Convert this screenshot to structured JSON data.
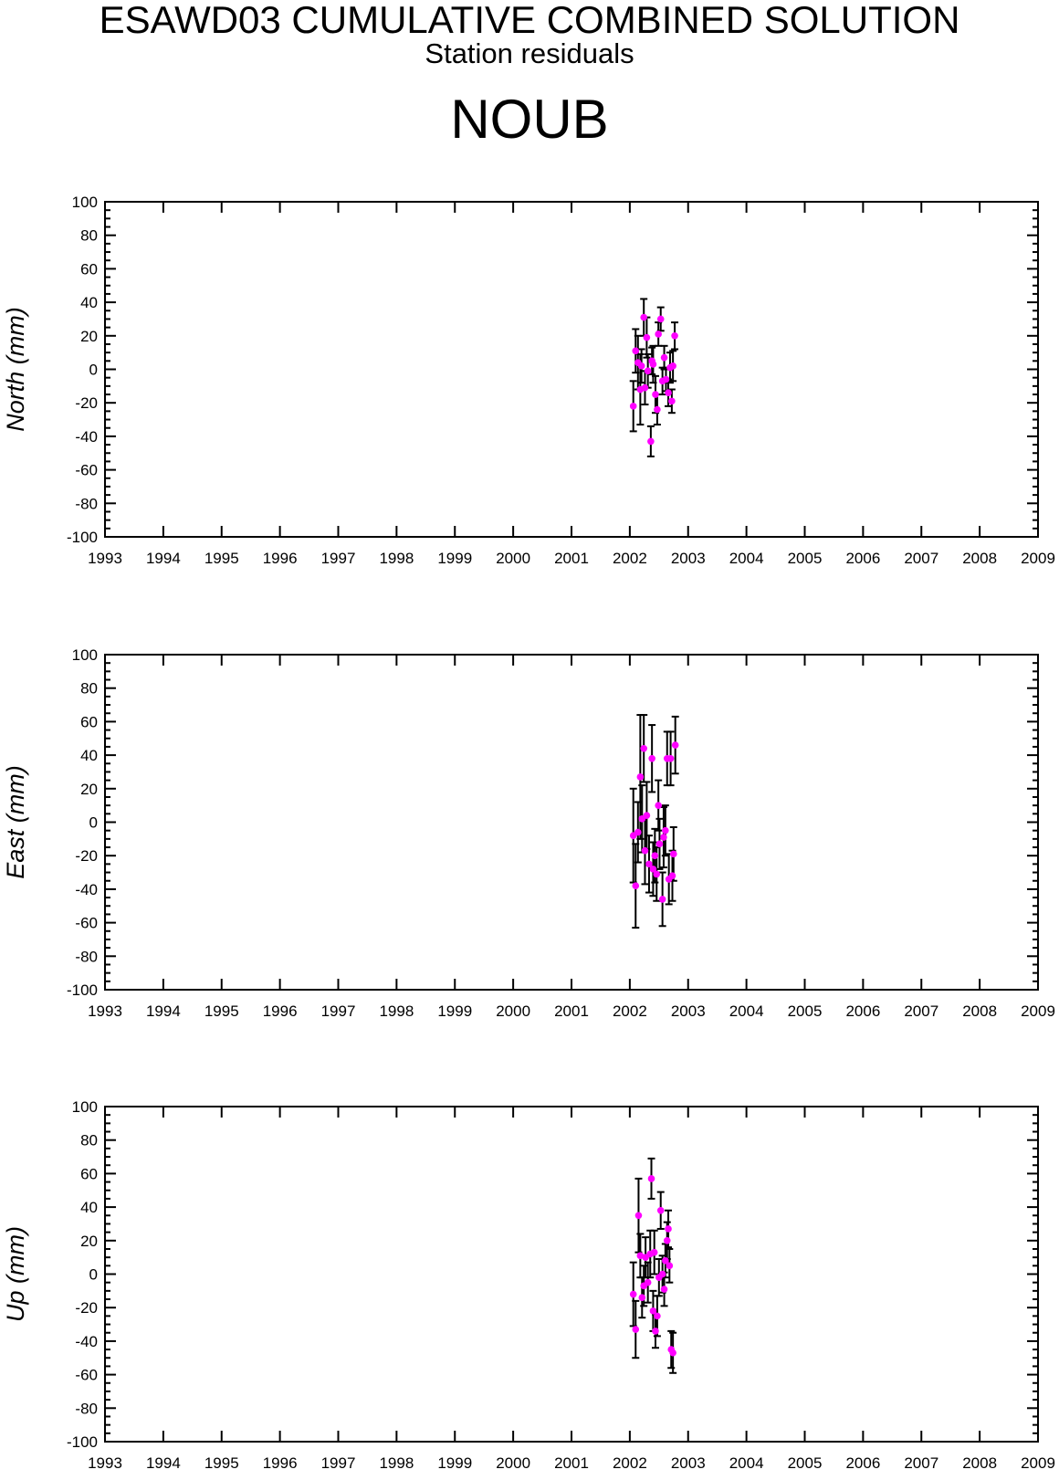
{
  "header": {
    "title": "ESAWD03 CUMULATIVE COMBINED SOLUTION",
    "subtitle": "Station residuals",
    "station": "NOUB"
  },
  "colors": {
    "marker": "#ff00ff",
    "errorbar": "#000000",
    "axis": "#000000"
  },
  "chart_data": [
    {
      "type": "scatter",
      "ylabel": "North (mm)",
      "xlim": [
        1993,
        2009
      ],
      "ylim": [
        -100,
        100
      ],
      "x_ticks": [
        "1993",
        "1994",
        "1995",
        "1996",
        "1997",
        "1998",
        "1999",
        "2000",
        "2001",
        "2002",
        "2003",
        "2004",
        "2005",
        "2006",
        "2007",
        "2008",
        "2009"
      ],
      "y_ticks": [
        "-100",
        "-80",
        "-60",
        "-40",
        "-20",
        "0",
        "20",
        "40",
        "60",
        "80",
        "100"
      ],
      "grid": false,
      "points": [
        {
          "x": 2002.06,
          "y": -22,
          "err": 15
        },
        {
          "x": 2002.1,
          "y": 11,
          "err": 13
        },
        {
          "x": 2002.14,
          "y": 4,
          "err": 16
        },
        {
          "x": 2002.18,
          "y": -12,
          "err": 21
        },
        {
          "x": 2002.2,
          "y": 2,
          "err": 10
        },
        {
          "x": 2002.24,
          "y": 31,
          "err": 11
        },
        {
          "x": 2002.26,
          "y": -11,
          "err": 10
        },
        {
          "x": 2002.29,
          "y": 19,
          "err": 12
        },
        {
          "x": 2002.31,
          "y": -1,
          "err": 10
        },
        {
          "x": 2002.36,
          "y": -43,
          "err": 9
        },
        {
          "x": 2002.38,
          "y": 5,
          "err": 8
        },
        {
          "x": 2002.4,
          "y": 3,
          "err": 11
        },
        {
          "x": 2002.44,
          "y": -15,
          "err": 11
        },
        {
          "x": 2002.47,
          "y": -24,
          "err": 9
        },
        {
          "x": 2002.49,
          "y": 21,
          "err": 7
        },
        {
          "x": 2002.53,
          "y": 30,
          "err": 7
        },
        {
          "x": 2002.56,
          "y": -7,
          "err": 8
        },
        {
          "x": 2002.59,
          "y": 7,
          "err": 7
        },
        {
          "x": 2002.62,
          "y": -6,
          "err": 7
        },
        {
          "x": 2002.66,
          "y": -14,
          "err": 8
        },
        {
          "x": 2002.69,
          "y": 1,
          "err": 9
        },
        {
          "x": 2002.72,
          "y": -19,
          "err": 7
        },
        {
          "x": 2002.74,
          "y": 2,
          "err": 9
        },
        {
          "x": 2002.77,
          "y": 20,
          "err": 8
        }
      ]
    },
    {
      "type": "scatter",
      "ylabel": "East (mm)",
      "xlim": [
        1993,
        2009
      ],
      "ylim": [
        -100,
        100
      ],
      "x_ticks": [
        "1993",
        "1994",
        "1995",
        "1996",
        "1997",
        "1998",
        "1999",
        "2000",
        "2001",
        "2002",
        "2003",
        "2004",
        "2005",
        "2006",
        "2007",
        "2008",
        "2009"
      ],
      "y_ticks": [
        "-100",
        "-80",
        "-60",
        "-40",
        "-20",
        "0",
        "20",
        "40",
        "60",
        "80",
        "100"
      ],
      "grid": false,
      "points": [
        {
          "x": 2002.06,
          "y": -8,
          "err": 28
        },
        {
          "x": 2002.1,
          "y": -38,
          "err": 25
        },
        {
          "x": 2002.14,
          "y": -6,
          "err": 18
        },
        {
          "x": 2002.18,
          "y": 27,
          "err": 37
        },
        {
          "x": 2002.21,
          "y": 2,
          "err": 20
        },
        {
          "x": 2002.24,
          "y": 44,
          "err": 20
        },
        {
          "x": 2002.26,
          "y": -17,
          "err": 20
        },
        {
          "x": 2002.29,
          "y": 4,
          "err": 20
        },
        {
          "x": 2002.33,
          "y": -25,
          "err": 17
        },
        {
          "x": 2002.38,
          "y": 38,
          "err": 20
        },
        {
          "x": 2002.4,
          "y": -28,
          "err": 16
        },
        {
          "x": 2002.43,
          "y": -20,
          "err": 16
        },
        {
          "x": 2002.46,
          "y": -31,
          "err": 16
        },
        {
          "x": 2002.49,
          "y": 10,
          "err": 15
        },
        {
          "x": 2002.51,
          "y": -13,
          "err": 15
        },
        {
          "x": 2002.56,
          "y": -46,
          "err": 16
        },
        {
          "x": 2002.58,
          "y": -9,
          "err": 18
        },
        {
          "x": 2002.61,
          "y": -5,
          "err": 15
        },
        {
          "x": 2002.64,
          "y": 38,
          "err": 16
        },
        {
          "x": 2002.67,
          "y": -34,
          "err": 15
        },
        {
          "x": 2002.7,
          "y": 38,
          "err": 16
        },
        {
          "x": 2002.73,
          "y": -32,
          "err": 15
        },
        {
          "x": 2002.75,
          "y": -19,
          "err": 16
        },
        {
          "x": 2002.78,
          "y": 46,
          "err": 17
        }
      ]
    },
    {
      "type": "scatter",
      "ylabel": "Up (mm)",
      "xlim": [
        1993,
        2009
      ],
      "ylim": [
        -100,
        100
      ],
      "x_ticks": [
        "1993",
        "1994",
        "1995",
        "1996",
        "1997",
        "1998",
        "1999",
        "2000",
        "2001",
        "2002",
        "2003",
        "2004",
        "2005",
        "2006",
        "2007",
        "2008",
        "2009"
      ],
      "y_ticks": [
        "-100",
        "-80",
        "-60",
        "-40",
        "-20",
        "0",
        "20",
        "40",
        "60",
        "80",
        "100"
      ],
      "grid": false,
      "points": [
        {
          "x": 2002.06,
          "y": -12,
          "err": 19
        },
        {
          "x": 2002.1,
          "y": -33,
          "err": 17
        },
        {
          "x": 2002.15,
          "y": 35,
          "err": 22
        },
        {
          "x": 2002.18,
          "y": 11,
          "err": 13
        },
        {
          "x": 2002.21,
          "y": -14,
          "err": 12
        },
        {
          "x": 2002.24,
          "y": -7,
          "err": 12
        },
        {
          "x": 2002.27,
          "y": 10,
          "err": 12
        },
        {
          "x": 2002.31,
          "y": -5,
          "err": 12
        },
        {
          "x": 2002.35,
          "y": 12,
          "err": 14
        },
        {
          "x": 2002.37,
          "y": 57,
          "err": 12
        },
        {
          "x": 2002.4,
          "y": -22,
          "err": 12
        },
        {
          "x": 2002.42,
          "y": 13,
          "err": 13
        },
        {
          "x": 2002.44,
          "y": -34,
          "err": 10
        },
        {
          "x": 2002.47,
          "y": -25,
          "err": 12
        },
        {
          "x": 2002.5,
          "y": -2,
          "err": 11
        },
        {
          "x": 2002.53,
          "y": 38,
          "err": 11
        },
        {
          "x": 2002.56,
          "y": 0,
          "err": 11
        },
        {
          "x": 2002.59,
          "y": -9,
          "err": 10
        },
        {
          "x": 2002.61,
          "y": 8,
          "err": 10
        },
        {
          "x": 2002.64,
          "y": 20,
          "err": 11
        },
        {
          "x": 2002.66,
          "y": 27,
          "err": 11
        },
        {
          "x": 2002.68,
          "y": 5,
          "err": 10
        },
        {
          "x": 2002.71,
          "y": -45,
          "err": 11
        },
        {
          "x": 2002.74,
          "y": -47,
          "err": 12
        }
      ]
    }
  ]
}
